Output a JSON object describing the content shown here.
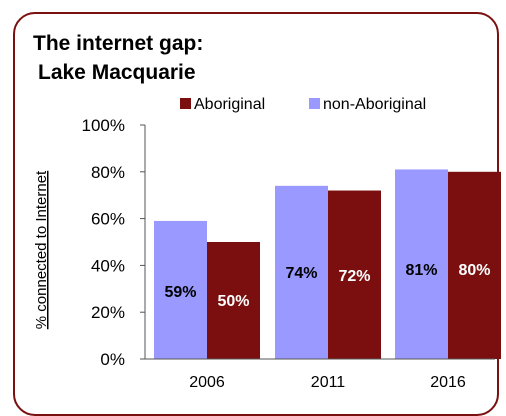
{
  "chart_data": {
    "type": "bar",
    "title": "The internet gap:",
    "subtitle": "Lake Macquarie",
    "ylabel": "% connected to Internet",
    "xlabel": "",
    "categories": [
      "2006",
      "2011",
      "2016"
    ],
    "series": [
      {
        "name": "non-Aboriginal",
        "values": [
          59,
          74,
          81
        ],
        "color": "#9999ff",
        "labels": [
          "59%",
          "74%",
          "81%"
        ],
        "label_color": "#000000"
      },
      {
        "name": "Aboriginal",
        "values": [
          50,
          72,
          80
        ],
        "color": "#7b0f0f",
        "labels": [
          "50%",
          "72%",
          "80%"
        ],
        "label_color": "#ffffff"
      }
    ],
    "legend_order": [
      "Aboriginal",
      "non-Aboriginal"
    ],
    "legend_position": "top",
    "ylim": [
      0,
      100
    ],
    "yticks": [
      "0%",
      "20%",
      "40%",
      "60%",
      "80%",
      "100%"
    ],
    "grid": false
  },
  "colors": {
    "border": "#7a1010"
  }
}
